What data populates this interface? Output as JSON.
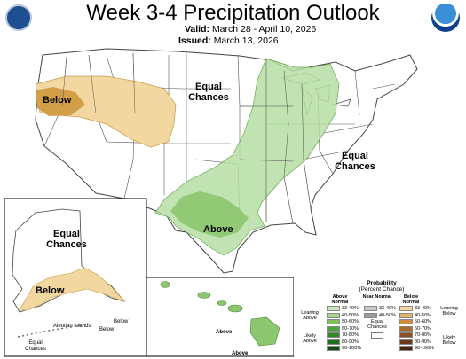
{
  "header": {
    "title": "Week 3-4 Precipitation Outlook",
    "valid_label": "Valid:",
    "valid_dates": "March 28 - April 10, 2026",
    "issued_label": "Issued:",
    "issued_date": "March 13, 2026"
  },
  "labels": {
    "below_west": "Below",
    "equal_north": "Equal\nChances",
    "equal_east": "Equal\nChances",
    "above_south": "Above",
    "equal_alaska": "Equal\nChances",
    "below_alaska": "Below",
    "aleutian": "Aleutian Islands",
    "below_aleutian_1": "Below",
    "below_aleutian_2": "Below",
    "equal_aleutian": "Equal\nChances",
    "above_hawaii_1": "Above",
    "above_hawaii_2": "Above"
  },
  "legend": {
    "title": "Probability",
    "subtitle": "(Percent Chance)",
    "above_header": "Above Normal",
    "near_header": "Near Normal",
    "below_header": "Below Normal",
    "equal_chances": "Equal Chances",
    "leaning_above": "Leaning Above",
    "likely_above": "Likely Above",
    "leaning_below": "Leaning Below",
    "likely_below": "Likely Below",
    "above_levels": [
      {
        "range": "33-40%",
        "color": "#c9e7b8"
      },
      {
        "range": "40-50%",
        "color": "#a9d68f"
      },
      {
        "range": "50-60%",
        "color": "#7fbf5d"
      },
      {
        "range": "60-70%",
        "color": "#4da43a"
      },
      {
        "range": "70-80%",
        "color": "#2f8a2a"
      },
      {
        "range": "80-90%",
        "color": "#1f6f1f"
      },
      {
        "range": "90-100%",
        "color": "#0f4d12"
      }
    ],
    "near_levels": [
      {
        "range": "33-40%",
        "color": "#c8c8c8"
      },
      {
        "range": "40-50%",
        "color": "#9a9a9a"
      }
    ],
    "below_levels": [
      {
        "range": "33-40%",
        "color": "#f3d7a0"
      },
      {
        "range": "40-50%",
        "color": "#e3b66d"
      },
      {
        "range": "50-60%",
        "color": "#c98d3d"
      },
      {
        "range": "60-70%",
        "color": "#a96b2c"
      },
      {
        "range": "70-80%",
        "color": "#8a4f22"
      },
      {
        "range": "80-90%",
        "color": "#6b3819"
      },
      {
        "range": "90-100%",
        "color": "#4a2410"
      }
    ]
  }
}
